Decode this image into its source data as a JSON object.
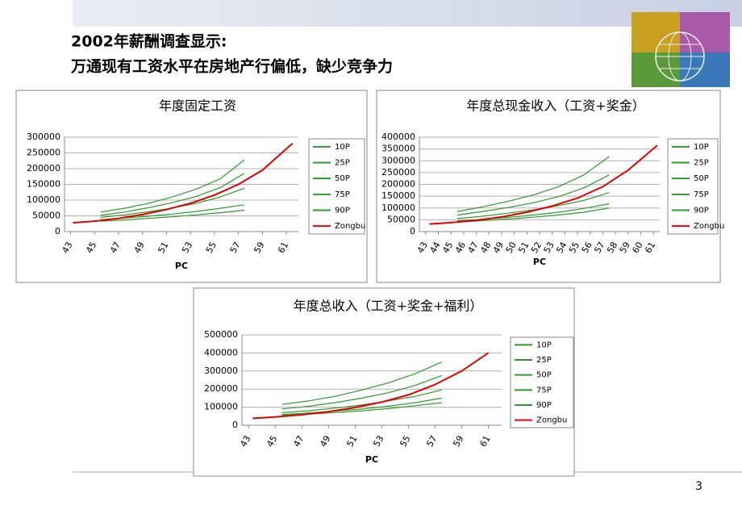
{
  "header": {
    "title_line1": "2002年薪酬调查显示:",
    "title_line2": "万通现有工资水平在房地产行偏低，缺少竞争力"
  },
  "page_number": "3",
  "chart_data": [
    {
      "type": "line",
      "title": "年度固定工资",
      "x_label": "PC",
      "xlim": [
        42.5,
        62
      ],
      "xticks": [
        43,
        45,
        47,
        49,
        51,
        53,
        55,
        57,
        59,
        61
      ],
      "ylim": [
        0,
        300000
      ],
      "yticks": [
        0,
        50000,
        100000,
        150000,
        200000,
        250000,
        300000
      ],
      "grid": true,
      "series": [
        {
          "name": "10P",
          "color": "#2e9a2e",
          "x": [
            45.5,
            47.5,
            49.5,
            51.5,
            53.5,
            55.5,
            57.5
          ],
          "values": [
            33000,
            37000,
            42000,
            47000,
            53000,
            60000,
            68000
          ]
        },
        {
          "name": "25P",
          "color": "#2e9a2e",
          "x": [
            45.5,
            47.5,
            49.5,
            51.5,
            53.5,
            55.5,
            57.5
          ],
          "values": [
            38000,
            43000,
            49000,
            56000,
            64000,
            74000,
            85000
          ]
        },
        {
          "name": "50P",
          "color": "#2e9a2e",
          "x": [
            45.5,
            47.5,
            49.5,
            51.5,
            53.5,
            55.5,
            57.5
          ],
          "values": [
            45000,
            53000,
            63000,
            75000,
            90000,
            110000,
            138000
          ]
        },
        {
          "name": "75P",
          "color": "#2e9a2e",
          "x": [
            45.5,
            47.5,
            49.5,
            51.5,
            53.5,
            55.5,
            57.5
          ],
          "values": [
            52000,
            62000,
            76000,
            92000,
            112000,
            140000,
            185000
          ]
        },
        {
          "name": "90P",
          "color": "#2e9a2e",
          "x": [
            45.5,
            47.5,
            49.5,
            51.5,
            53.5,
            55.5,
            57.5
          ],
          "values": [
            62000,
            74000,
            90000,
            110000,
            135000,
            168000,
            228000
          ]
        },
        {
          "name": "Zongbu",
          "color": "#e00000",
          "x": [
            43.2,
            45,
            47,
            49,
            51,
            53,
            55,
            57,
            59,
            61.5
          ],
          "values": [
            28000,
            33000,
            42000,
            54000,
            70000,
            90000,
            116000,
            150000,
            195000,
            280000
          ]
        }
      ]
    },
    {
      "type": "line",
      "title": "年度总现金收入（工资+奖金）",
      "x_label": "PC",
      "xlim": [
        42.5,
        61.5
      ],
      "xticks": [
        43,
        44,
        45,
        46,
        47,
        48,
        49,
        50,
        51,
        52,
        53,
        54,
        55,
        56,
        57,
        58,
        59,
        60,
        61
      ],
      "ylim": [
        0,
        400000
      ],
      "yticks": [
        0,
        50000,
        100000,
        150000,
        200000,
        250000,
        300000,
        350000,
        400000
      ],
      "grid": true,
      "series": [
        {
          "name": "10P",
          "color": "#2e9a2e",
          "x": [
            45.5,
            47.5,
            49.5,
            51.5,
            53.5,
            55.5,
            57.5
          ],
          "values": [
            40000,
            46000,
            53000,
            61000,
            70000,
            82000,
            100000
          ]
        },
        {
          "name": "25P",
          "color": "#2e9a2e",
          "x": [
            45.5,
            47.5,
            49.5,
            51.5,
            53.5,
            55.5,
            57.5
          ],
          "values": [
            45000,
            52000,
            60000,
            70000,
            82000,
            98000,
            118000
          ]
        },
        {
          "name": "50P",
          "color": "#2e9a2e",
          "x": [
            45.5,
            47.5,
            49.5,
            51.5,
            53.5,
            55.5,
            57.5
          ],
          "values": [
            55000,
            65000,
            78000,
            92000,
            110000,
            132000,
            165000
          ]
        },
        {
          "name": "75P",
          "color": "#2e9a2e",
          "x": [
            45.5,
            47.5,
            49.5,
            51.5,
            53.5,
            55.5,
            57.5
          ],
          "values": [
            70000,
            85000,
            102000,
            122000,
            148000,
            185000,
            240000
          ]
        },
        {
          "name": "90P",
          "color": "#2e9a2e",
          "x": [
            45.5,
            47.5,
            49.5,
            51.5,
            53.5,
            55.5,
            57.5
          ],
          "values": [
            85000,
            105000,
            128000,
            155000,
            190000,
            240000,
            318000
          ]
        },
        {
          "name": "Zongbu",
          "color": "#e00000",
          "x": [
            43.3,
            45,
            47,
            49,
            51,
            53,
            55,
            57,
            59,
            61.3
          ],
          "values": [
            32000,
            38000,
            48000,
            62000,
            82000,
            108000,
            142000,
            190000,
            260000,
            365000
          ]
        }
      ]
    },
    {
      "type": "line",
      "title": "年度总收入（工资+奖金+福利）",
      "x_label": "PC",
      "xlim": [
        42.5,
        62
      ],
      "xticks": [
        43,
        45,
        47,
        49,
        51,
        53,
        55,
        57,
        59,
        61
      ],
      "ylim": [
        0,
        500000
      ],
      "yticks": [
        0,
        100000,
        200000,
        300000,
        400000,
        500000
      ],
      "grid": true,
      "series": [
        {
          "name": "10P",
          "color": "#2e9a2e",
          "x": [
            45.5,
            47.5,
            49.5,
            51.5,
            53.5,
            55.5,
            57.5
          ],
          "values": [
            55000,
            62000,
            70000,
            80000,
            92000,
            108000,
            125000
          ]
        },
        {
          "name": "25P",
          "color": "#2e9a2e",
          "x": [
            45.5,
            47.5,
            49.5,
            51.5,
            53.5,
            55.5,
            57.5
          ],
          "values": [
            60000,
            68000,
            78000,
            90000,
            105000,
            125000,
            150000
          ]
        },
        {
          "name": "50P",
          "color": "#2e9a2e",
          "x": [
            45.5,
            47.5,
            49.5,
            51.5,
            53.5,
            55.5,
            57.5
          ],
          "values": [
            70000,
            80000,
            95000,
            112000,
            135000,
            160000,
            195000
          ]
        },
        {
          "name": "75P",
          "color": "#2e9a2e",
          "x": [
            45.5,
            47.5,
            49.5,
            51.5,
            53.5,
            55.5,
            57.5
          ],
          "values": [
            90000,
            105000,
            125000,
            150000,
            180000,
            220000,
            275000
          ]
        },
        {
          "name": "90P",
          "color": "#2e9a2e",
          "x": [
            45.5,
            47.5,
            49.5,
            51.5,
            53.5,
            55.5,
            57.5
          ],
          "values": [
            115000,
            135000,
            160000,
            195000,
            235000,
            285000,
            350000
          ]
        },
        {
          "name": "Zongbu",
          "color": "#e00000",
          "x": [
            43.3,
            45,
            47,
            49,
            51,
            53,
            55,
            57,
            59,
            61
          ],
          "values": [
            38000,
            46000,
            58000,
            75000,
            98000,
            128000,
            168000,
            225000,
            300000,
            400000
          ]
        }
      ]
    }
  ]
}
